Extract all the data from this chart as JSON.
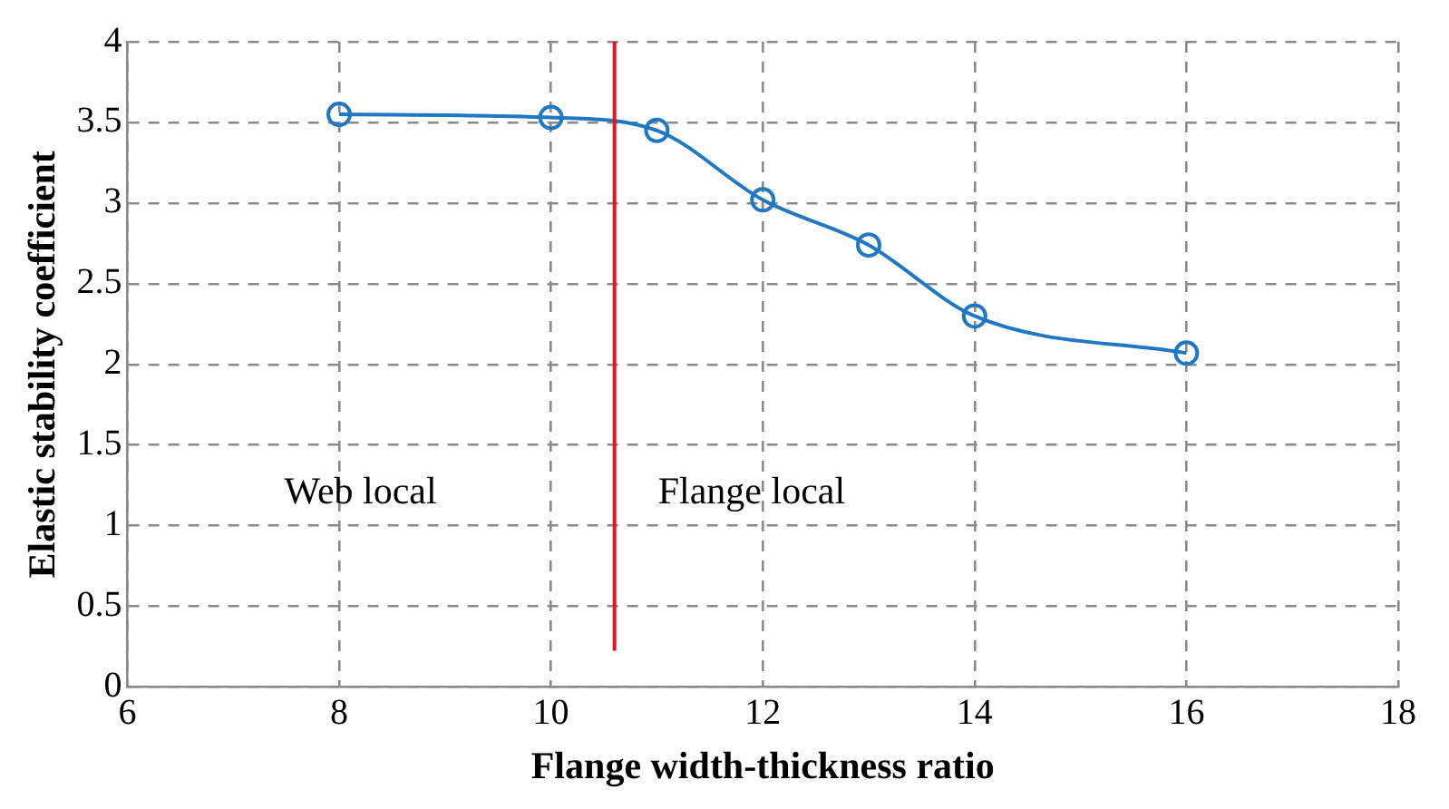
{
  "chart_data": {
    "type": "line",
    "xlabel": "Flange width-thickness ratio",
    "ylabel": "Elastic stability coefficient",
    "x": [
      8,
      10,
      11,
      12,
      13,
      14,
      16
    ],
    "series": [
      {
        "color": "#1f78c1",
        "values": [
          3.55,
          3.53,
          3.45,
          3.02,
          2.74,
          2.3,
          2.07
        ]
      }
    ],
    "xlim": [
      6,
      18
    ],
    "xticks": [
      6,
      8,
      10,
      12,
      14,
      16,
      18
    ],
    "ylim": [
      0,
      4
    ],
    "yticks": [
      0,
      0.5,
      1,
      1.5,
      2,
      2.5,
      3,
      3.5,
      4
    ],
    "grid": true,
    "marker": "circle",
    "legend": false,
    "ref_lines": [
      {
        "axis": "x",
        "value": 10.6,
        "color": "#e8131b"
      }
    ],
    "annotations": [
      "Web local",
      "Flange local"
    ]
  }
}
